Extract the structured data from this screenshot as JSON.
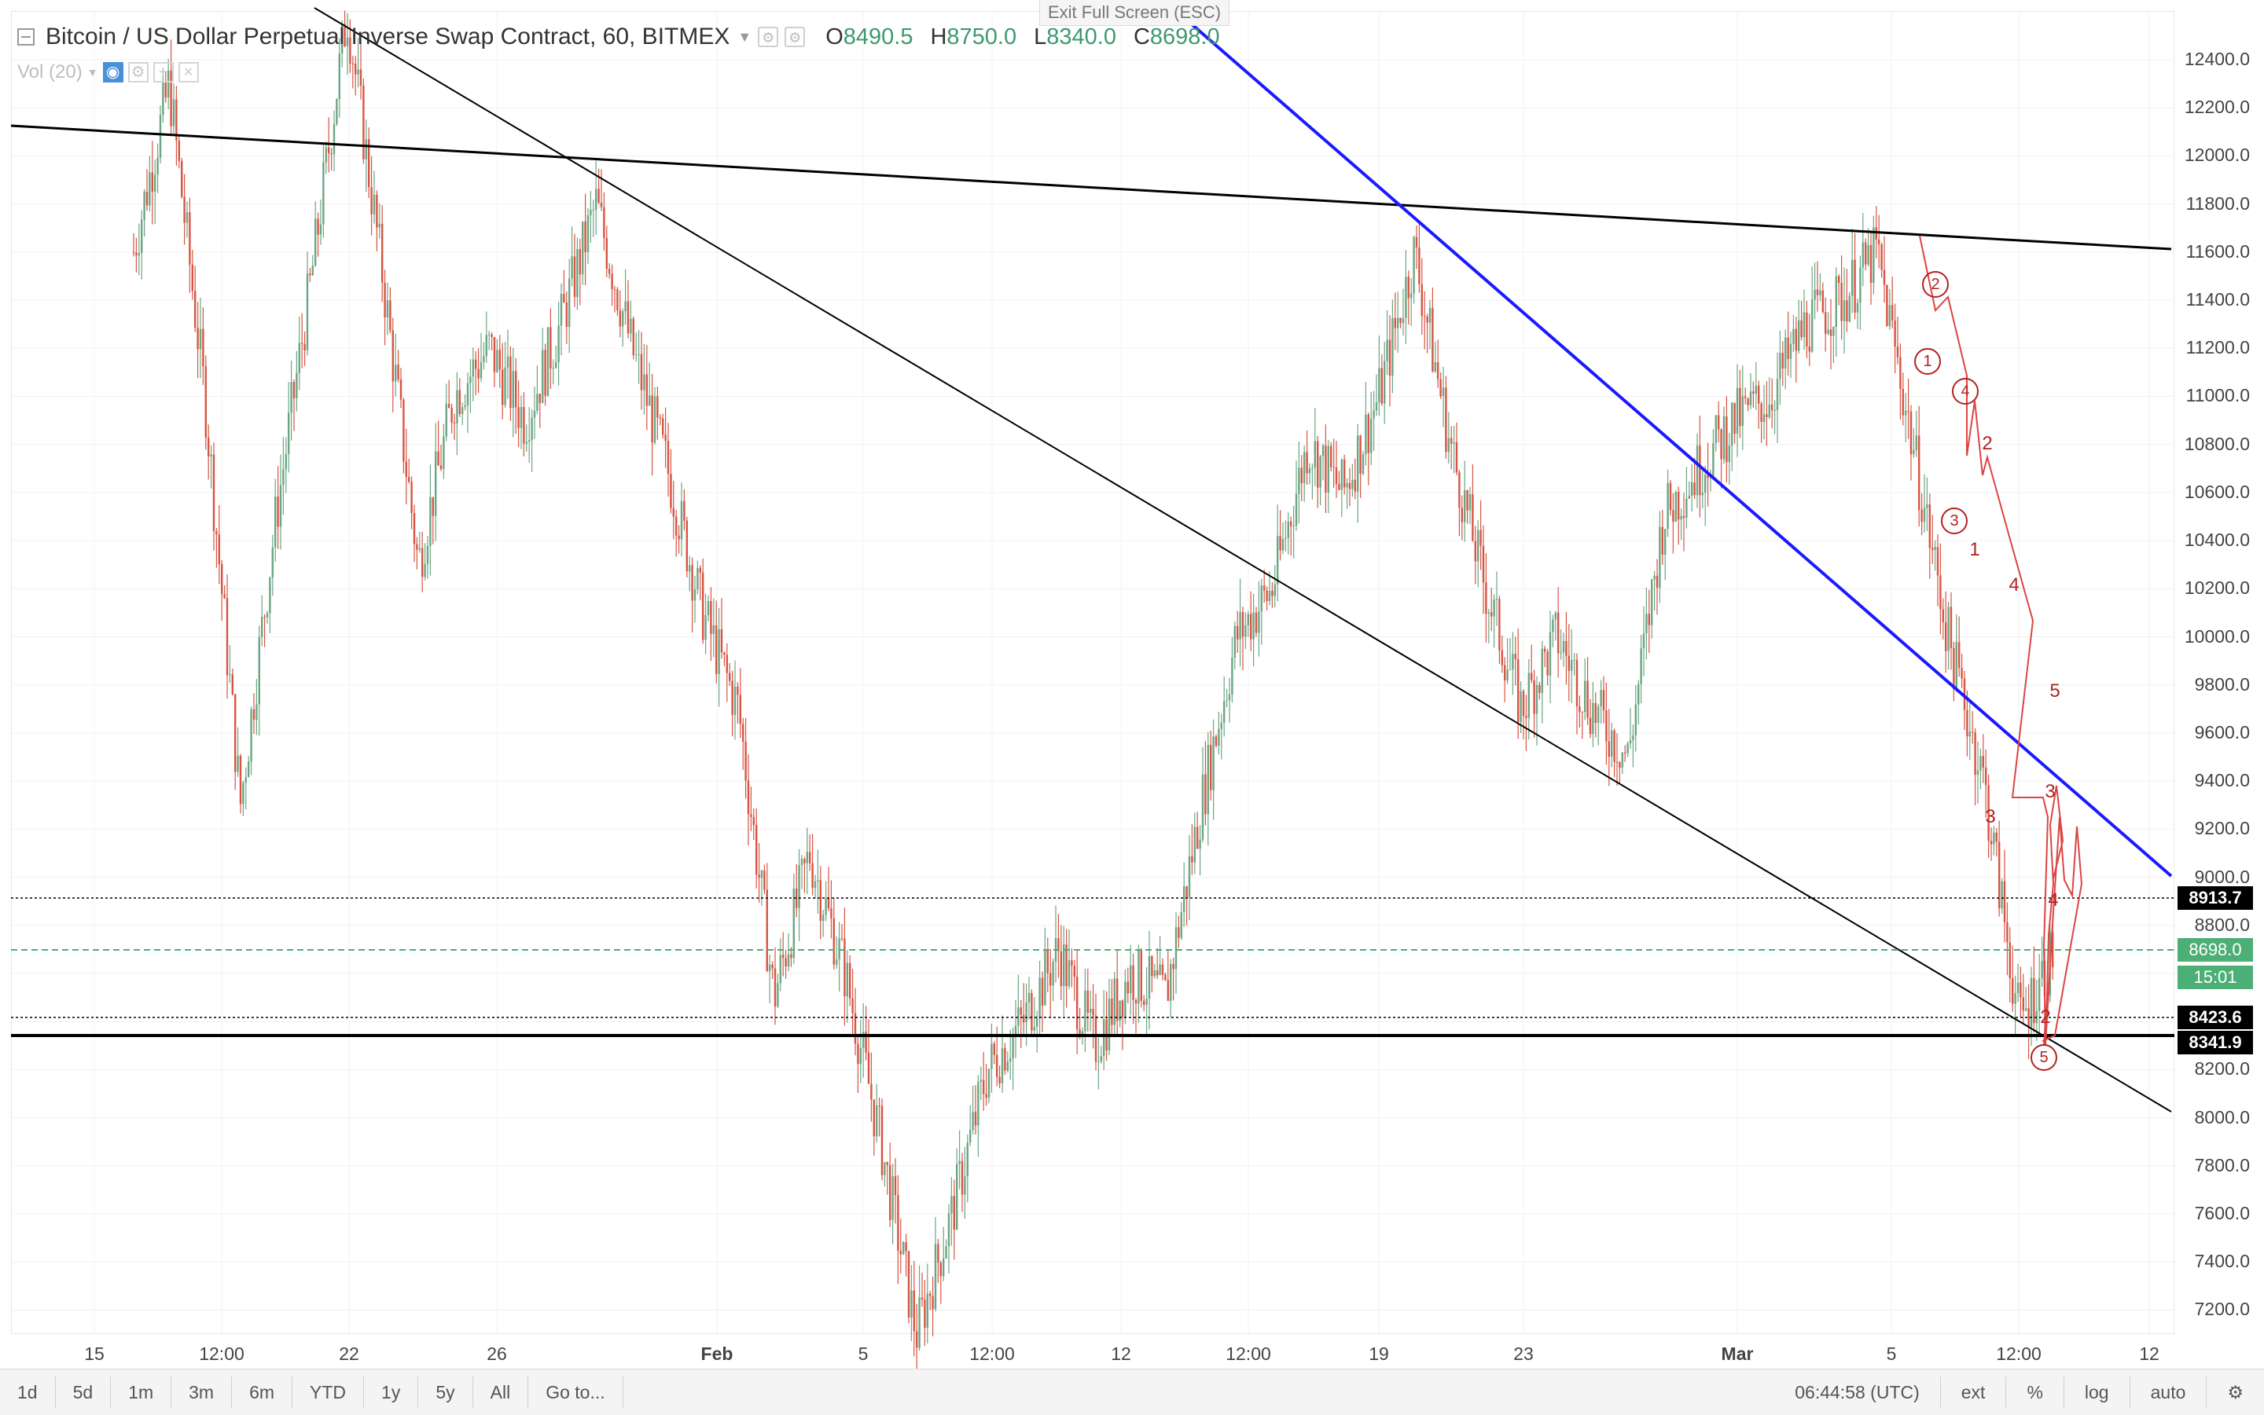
{
  "header": {
    "title": "Bitcoin / US Dollar Perpetual Inverse Swap Contract, 60, BITMEX",
    "ohlc": [
      {
        "k": "O",
        "v": "8490.5"
      },
      {
        "k": "H",
        "v": "8750.0"
      },
      {
        "k": "L",
        "v": "8340.0"
      },
      {
        "k": "C",
        "v": "8698.0"
      }
    ],
    "volume_label": "Vol (20)",
    "exit_fullscreen": "Exit Full Screen (ESC)"
  },
  "price_axis": [
    "12400.0",
    "12200.0",
    "12000.0",
    "11800.0",
    "11600.0",
    "11400.0",
    "11200.0",
    "11000.0",
    "10800.0",
    "10600.0",
    "10400.0",
    "10200.0",
    "10000.0",
    "9800.0",
    "9600.0",
    "9400.0",
    "9200.0",
    "9000.0",
    "8800.0",
    "8600.0",
    "8400.0",
    "8200.0",
    "8000.0",
    "7800.0",
    "7600.0",
    "7400.0",
    "7200.0"
  ],
  "price_tags": {
    "upper": "8913.7",
    "current": "8698.0",
    "countdown": "15:01",
    "level_a": "8423.6",
    "level_b": "8341.9"
  },
  "date_axis": [
    "15",
    "12:00",
    "22",
    "26",
    "Feb",
    "5",
    "12:00",
    "12",
    "12:00",
    "19",
    "23",
    "Mar",
    "5",
    "12:00",
    "12"
  ],
  "waves": {
    "circled": [
      "2",
      "1",
      "4",
      "3",
      "5"
    ],
    "plain": [
      "2",
      "1",
      "4",
      "3",
      "5",
      "3",
      "4",
      "2"
    ]
  },
  "bottom_bar": {
    "timeframes": [
      "1d",
      "5d",
      "1m",
      "3m",
      "6m",
      "YTD",
      "1y",
      "5y",
      "All",
      "Go to..."
    ],
    "clock": "06:44:58 (UTC)",
    "ext": "ext",
    "percent": "%",
    "log": "log",
    "auto": "auto"
  },
  "chart_data": {
    "type": "candlestick",
    "title": "Bitcoin / US Dollar Perpetual Inverse Swap Contract, 60, BITMEX",
    "ylim": [
      7100,
      12600
    ],
    "x_ticks": [
      "15",
      "12:00",
      "22",
      "26",
      "Feb",
      "5",
      "12:00",
      "12",
      "12:00",
      "19",
      "23",
      "Mar",
      "5",
      "12:00",
      "12"
    ],
    "price_path": [
      {
        "x": "15",
        "close": 11600
      },
      {
        "x": "17",
        "close": 12300
      },
      {
        "x": "18",
        "close": 11000
      },
      {
        "x": "18 12:00",
        "close": 9300
      },
      {
        "x": "19",
        "close": 10500
      },
      {
        "x": "20",
        "close": 11500
      },
      {
        "x": "21",
        "close": 12600
      },
      {
        "x": "22",
        "close": 11500
      },
      {
        "x": "23",
        "close": 10300
      },
      {
        "x": "24",
        "close": 11000
      },
      {
        "x": "25",
        "close": 11200
      },
      {
        "x": "26",
        "close": 10900
      },
      {
        "x": "27",
        "close": 11300
      },
      {
        "x": "28",
        "close": 11800
      },
      {
        "x": "29",
        "close": 11200
      },
      {
        "x": "30",
        "close": 10700
      },
      {
        "x": "31",
        "close": 10100
      },
      {
        "x": "Feb",
        "close": 9700
      },
      {
        "x": "2",
        "close": 8500
      },
      {
        "x": "3",
        "close": 9100
      },
      {
        "x": "4",
        "close": 8600
      },
      {
        "x": "5",
        "close": 7900
      },
      {
        "x": "6",
        "close": 7100
      },
      {
        "x": "7",
        "close": 7600
      },
      {
        "x": "8",
        "close": 8200
      },
      {
        "x": "9",
        "close": 8400
      },
      {
        "x": "10",
        "close": 8700
      },
      {
        "x": "11",
        "close": 8300
      },
      {
        "x": "12",
        "close": 8600
      },
      {
        "x": "13",
        "close": 8500
      },
      {
        "x": "14",
        "close": 9300
      },
      {
        "x": "15",
        "close": 10000
      },
      {
        "x": "16",
        "close": 10200
      },
      {
        "x": "17",
        "close": 10800
      },
      {
        "x": "18",
        "close": 10600
      },
      {
        "x": "19",
        "close": 11000
      },
      {
        "x": "20",
        "close": 11600
      },
      {
        "x": "21",
        "close": 10800
      },
      {
        "x": "22",
        "close": 10200
      },
      {
        "x": "23",
        "close": 9700
      },
      {
        "x": "24",
        "close": 10000
      },
      {
        "x": "25",
        "close": 9700
      },
      {
        "x": "26",
        "close": 9500
      },
      {
        "x": "27",
        "close": 10500
      },
      {
        "x": "28",
        "close": 10700
      },
      {
        "x": "Mar",
        "close": 10900
      },
      {
        "x": "2",
        "close": 11000
      },
      {
        "x": "3",
        "close": 11300
      },
      {
        "x": "4",
        "close": 11400
      },
      {
        "x": "5",
        "close": 11600
      },
      {
        "x": "6",
        "close": 10800
      },
      {
        "x": "7",
        "close": 10000
      },
      {
        "x": "8",
        "close": 9400
      },
      {
        "x": "9",
        "close": 8400
      },
      {
        "x": "9 06:44",
        "close": 8698
      }
    ],
    "horizontal_levels": [
      8913.7,
      8698.0,
      8423.6,
      8341.9
    ],
    "colors": {
      "up": "#6ba583",
      "down": "#d75442",
      "blue_trendline": "#1a1aff",
      "wave": "#b22222"
    }
  }
}
